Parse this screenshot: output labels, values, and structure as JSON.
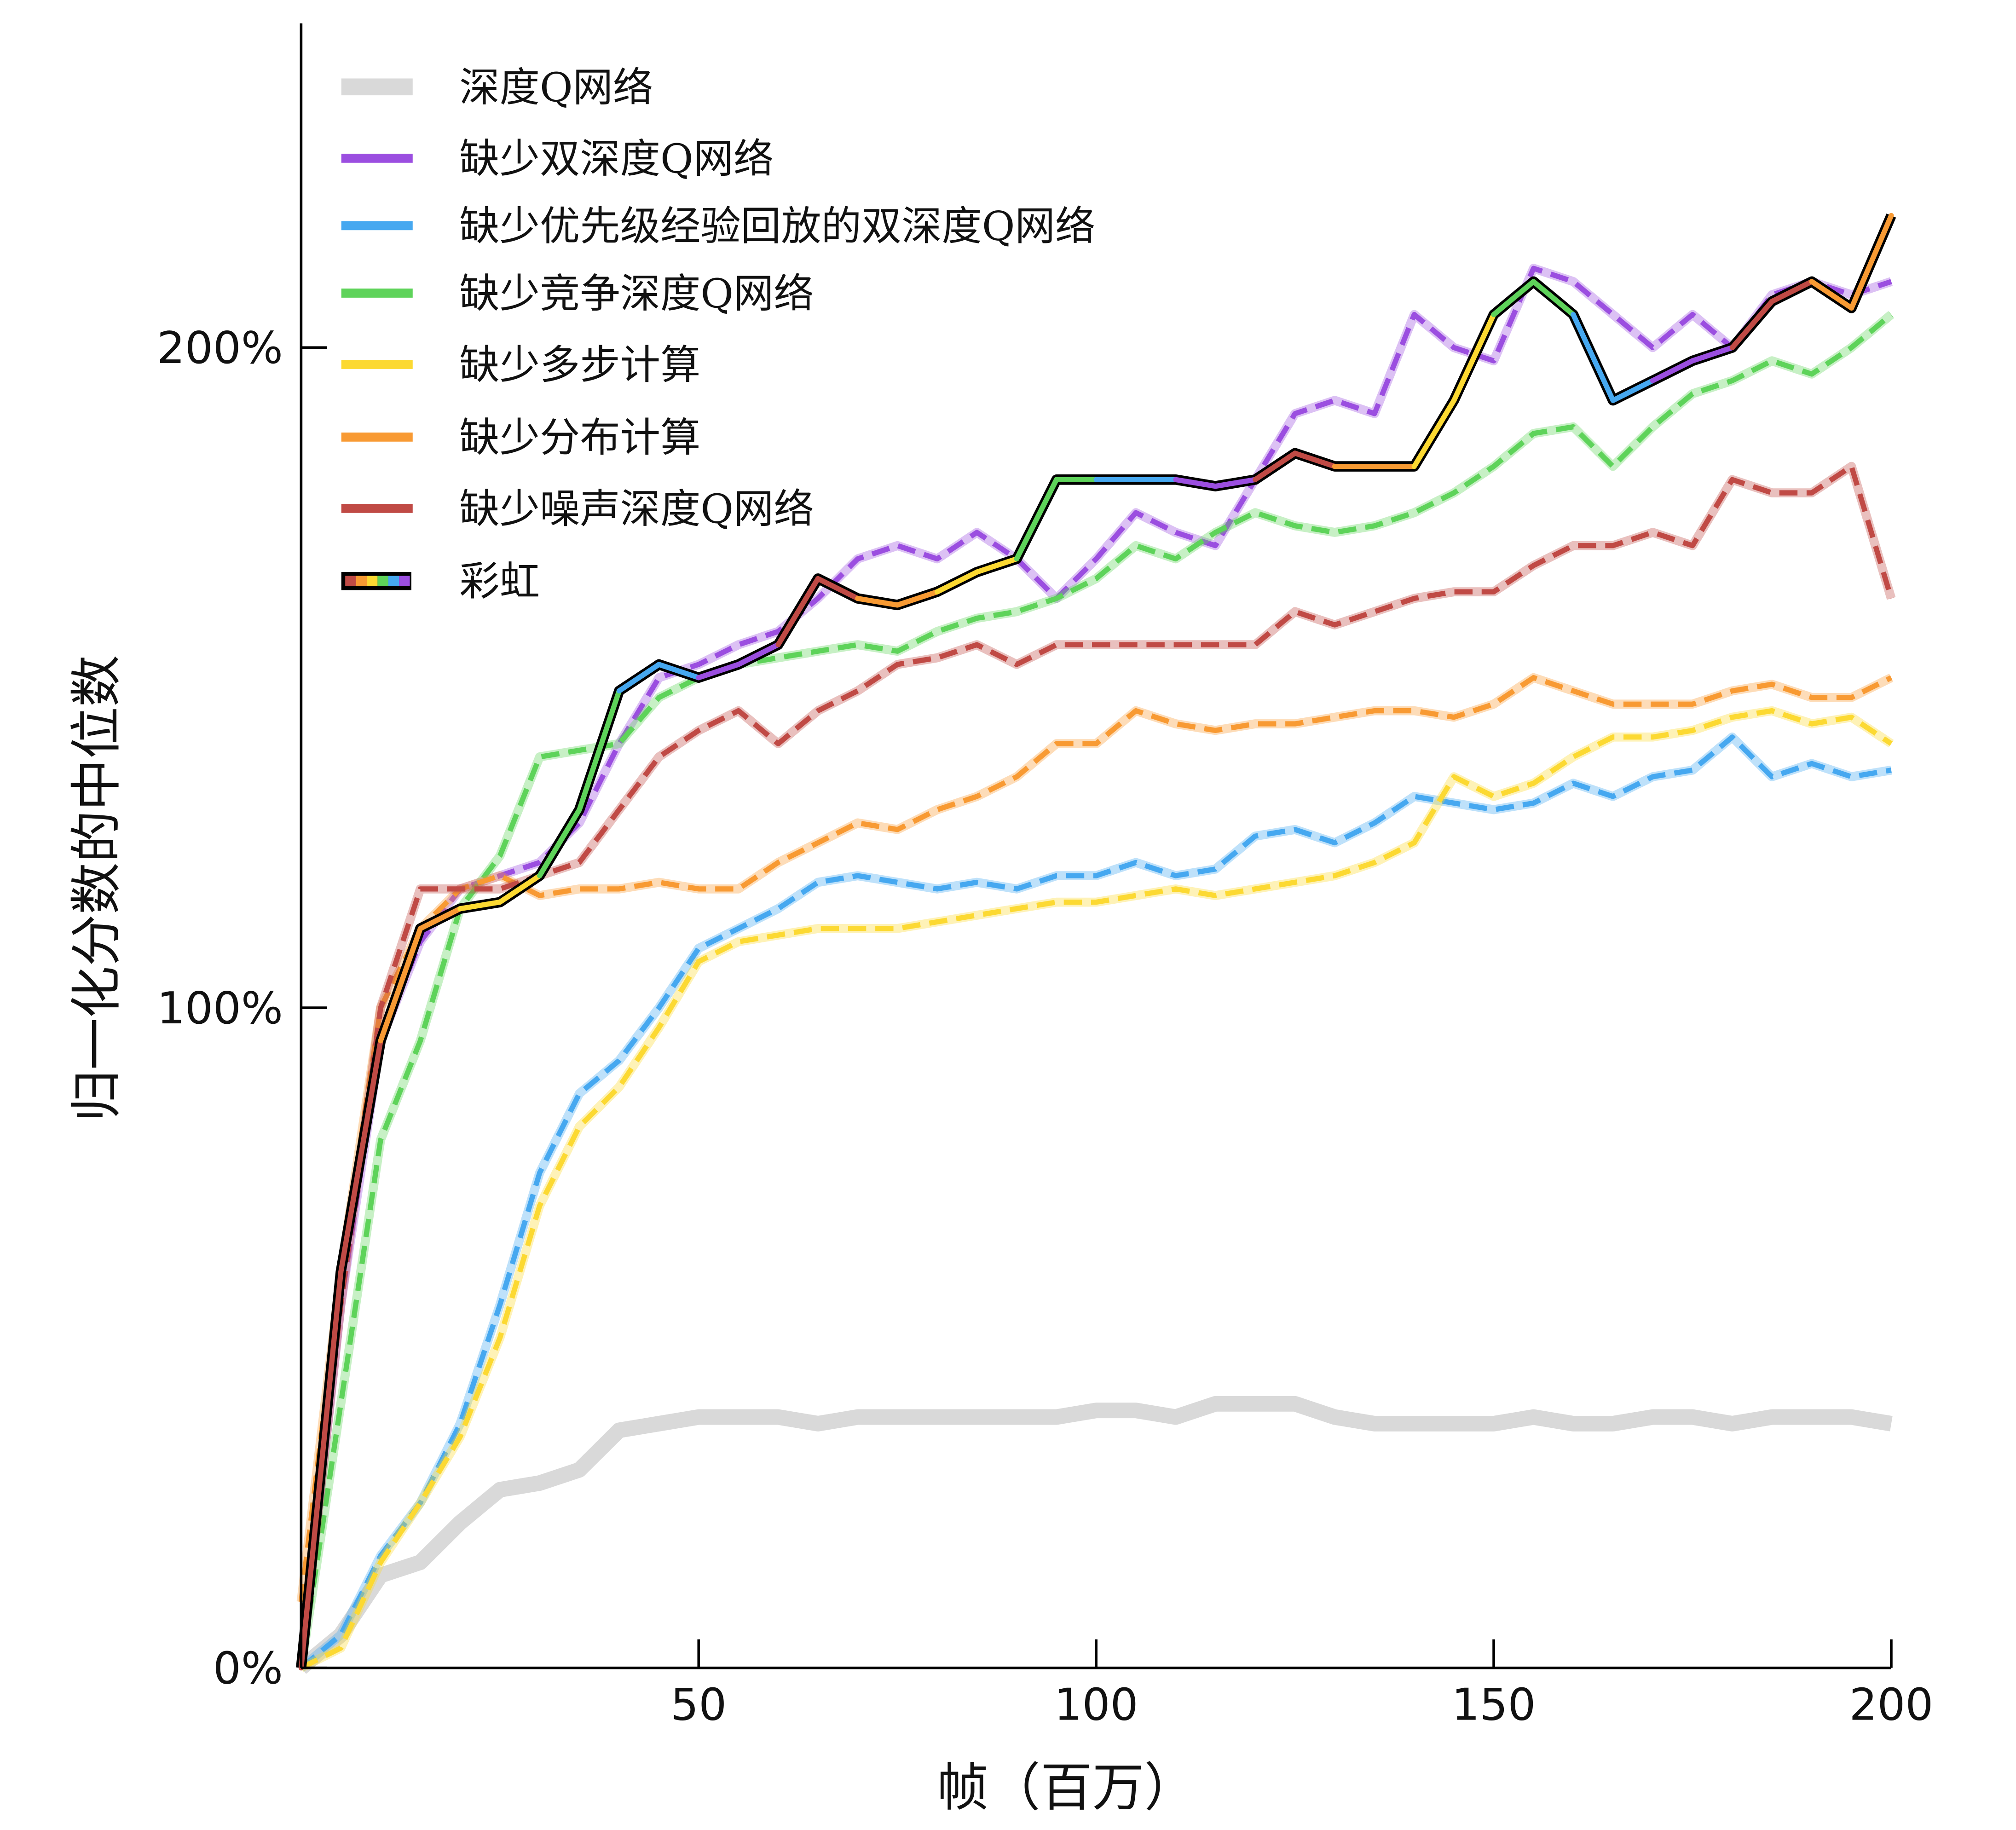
{
  "chart_data": {
    "type": "line",
    "title": "",
    "xlabel": "帧（百万）",
    "ylabel": "归一化分数的中位数",
    "xlim": [
      0,
      200
    ],
    "ylim": [
      0,
      240
    ],
    "xticks": [
      50,
      100,
      150,
      200
    ],
    "xtick_labels": [
      "50",
      "100",
      "150",
      "200"
    ],
    "yticks": [
      0,
      100,
      200
    ],
    "ytick_labels": [
      "0%",
      "100%",
      "200%"
    ],
    "grid": false,
    "legend_position": "top-left",
    "x": [
      0,
      5,
      10,
      15,
      20,
      25,
      30,
      35,
      40,
      45,
      50,
      55,
      60,
      65,
      70,
      75,
      80,
      85,
      90,
      95,
      100,
      105,
      110,
      115,
      120,
      125,
      130,
      135,
      140,
      145,
      150,
      155,
      160,
      165,
      170,
      175,
      180,
      185,
      190,
      195,
      200
    ],
    "series": [
      {
        "name": "深度Q网络",
        "color": "#d9d9d9",
        "style": "solid-thick",
        "values": [
          0,
          5,
          14,
          16,
          22,
          27,
          28,
          30,
          36,
          37,
          38,
          38,
          38,
          37,
          38,
          38,
          38,
          38,
          38,
          38,
          39,
          39,
          38,
          40,
          40,
          40,
          38,
          37,
          37,
          37,
          37,
          38,
          37,
          37,
          38,
          38,
          37,
          38,
          38,
          38,
          37
        ]
      },
      {
        "name": "缺少双深度Q网络",
        "color": "#9b4ee0",
        "style": "dashed",
        "values": [
          0,
          55,
          95,
          110,
          118,
          120,
          122,
          128,
          140,
          150,
          152,
          155,
          157,
          162,
          168,
          170,
          168,
          172,
          168,
          162,
          168,
          175,
          172,
          170,
          180,
          190,
          192,
          190,
          205,
          200,
          198,
          212,
          210,
          205,
          200,
          205,
          200,
          208,
          210,
          208,
          210
        ]
      },
      {
        "name": "缺少优先级经验回放的双深度Q网络",
        "color": "#46a8f0",
        "style": "dashed",
        "values": [
          0,
          5,
          17,
          25,
          37,
          55,
          75,
          87,
          92,
          100,
          109,
          112,
          115,
          119,
          120,
          119,
          118,
          119,
          118,
          120,
          120,
          122,
          120,
          121,
          126,
          127,
          125,
          128,
          132,
          131,
          130,
          131,
          134,
          132,
          135,
          136,
          141,
          135,
          137,
          135,
          136
        ]
      },
      {
        "name": "缺少竞争深度Q网络",
        "color": "#5ed35a",
        "style": "dashed",
        "values": [
          0,
          40,
          80,
          95,
          115,
          123,
          138,
          139,
          140,
          147,
          150,
          152,
          153,
          154,
          155,
          154,
          157,
          159,
          160,
          162,
          165,
          170,
          168,
          172,
          175,
          173,
          172,
          173,
          175,
          178,
          182,
          187,
          188,
          182,
          188,
          193,
          195,
          198,
          196,
          200,
          205
        ]
      },
      {
        "name": "缺少多步计算",
        "color": "#fcd932",
        "style": "dashed",
        "values": [
          0,
          3,
          16,
          25,
          35,
          50,
          70,
          82,
          88,
          97,
          107,
          110,
          111,
          112,
          112,
          112,
          113,
          114,
          115,
          116,
          116,
          117,
          118,
          117,
          118,
          119,
          120,
          122,
          125,
          135,
          132,
          134,
          138,
          141,
          141,
          142,
          144,
          145,
          143,
          144,
          140
        ]
      },
      {
        "name": "缺少分布计算",
        "color": "#f89a33",
        "style": "dashed",
        "values": [
          10,
          60,
          100,
          112,
          118,
          120,
          117,
          118,
          118,
          119,
          118,
          118,
          122,
          125,
          128,
          127,
          130,
          132,
          135,
          140,
          140,
          145,
          143,
          142,
          143,
          143,
          144,
          145,
          145,
          144,
          146,
          150,
          148,
          146,
          146,
          146,
          148,
          149,
          147,
          147,
          150
        ]
      },
      {
        "name": "缺少噪声深度Q网络",
        "color": "#c04a45",
        "style": "dashed",
        "values": [
          0,
          55,
          100,
          118,
          118,
          118,
          120,
          122,
          130,
          138,
          142,
          145,
          140,
          145,
          148,
          152,
          153,
          155,
          152,
          155,
          155,
          155,
          155,
          155,
          155,
          160,
          158,
          160,
          162,
          163,
          163,
          167,
          170,
          170,
          172,
          170,
          180,
          178,
          178,
          182,
          162
        ]
      },
      {
        "name": "彩虹",
        "color": "rainbow",
        "style": "solid-outlined",
        "segment_colors": [
          "#c04a45",
          "#f89a33",
          "#fcd932",
          "#5ed35a",
          "#46a8f0",
          "#9b4ee0"
        ],
        "values": [
          0,
          60,
          95,
          112,
          115,
          116,
          120,
          130,
          148,
          152,
          150,
          152,
          155,
          165,
          162,
          161,
          163,
          166,
          168,
          180,
          180,
          180,
          180,
          179,
          180,
          184,
          182,
          182,
          182,
          192,
          205,
          210,
          205,
          192,
          195,
          198,
          200,
          207,
          210,
          206,
          220
        ]
      }
    ]
  }
}
